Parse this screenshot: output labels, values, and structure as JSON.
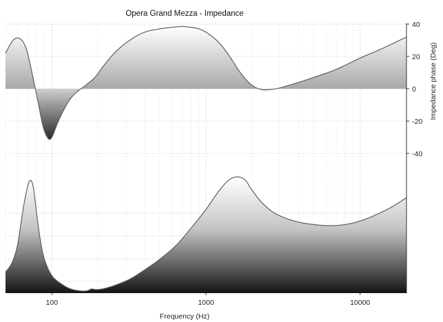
{
  "chart_data": {
    "type": "area",
    "title": "Opera Grand Mezza - Impedance",
    "xlabel": "Frequency (Hz)",
    "ylabel_right": "Impedance phase (Deg)",
    "x_scale": "log",
    "xlim": [
      50,
      20000
    ],
    "x_ticks": [
      100,
      1000,
      10000
    ],
    "x_tick_labels": [
      "100",
      "1000",
      "10000"
    ],
    "phase_ylim": [
      -40,
      40
    ],
    "phase_ticks": [
      40,
      20,
      0,
      -20,
      -40
    ],
    "phase_tick_labels": [
      "40",
      "20",
      "0",
      "-20",
      "-40"
    ],
    "grid": true,
    "series": [
      {
        "name": "",
        "panel": "phase",
        "unit": "Deg",
        "x": [
          50,
          56,
          62,
          68,
          75,
          82,
          88,
          95,
          100,
          108,
          118,
          130,
          145,
          160,
          170,
          190,
          220,
          260,
          320,
          400,
          500,
          600,
          700,
          800,
          900,
          1000,
          1200,
          1400,
          1700,
          2000,
          2300,
          2600,
          3000,
          4000,
          5000,
          7000,
          10000,
          14000,
          20000
        ],
        "values": [
          22,
          30,
          31,
          25,
          8,
          -10,
          -24,
          -31,
          -30,
          -22,
          -14,
          -7,
          -2,
          1,
          3,
          7,
          15,
          23,
          30,
          35,
          37,
          38,
          38.5,
          38,
          37,
          35,
          29,
          21,
          9,
          2,
          -0.5,
          -0.5,
          0.5,
          4,
          7,
          12,
          19,
          25,
          32
        ]
      },
      {
        "name": "",
        "panel": "magnitude",
        "unit": "",
        "x": [
          50,
          55,
          60,
          65,
          70,
          73,
          76,
          80,
          85,
          90,
          100,
          115,
          130,
          150,
          170,
          180,
          195,
          220,
          260,
          320,
          400,
          500,
          650,
          800,
          1000,
          1200,
          1400,
          1600,
          1800,
          2000,
          2300,
          2700,
          3200,
          4000,
          5000,
          6300,
          8000,
          10000,
          12500,
          16000,
          20000
        ],
        "values": [
          0.18,
          0.26,
          0.42,
          0.72,
          0.93,
          0.97,
          0.9,
          0.66,
          0.42,
          0.28,
          0.15,
          0.08,
          0.04,
          0.02,
          0.02,
          0.035,
          0.03,
          0.04,
          0.07,
          0.12,
          0.2,
          0.29,
          0.42,
          0.56,
          0.72,
          0.87,
          0.97,
          1.0,
          0.97,
          0.88,
          0.78,
          0.7,
          0.65,
          0.61,
          0.59,
          0.58,
          0.59,
          0.62,
          0.67,
          0.74,
          0.82
        ]
      }
    ]
  }
}
